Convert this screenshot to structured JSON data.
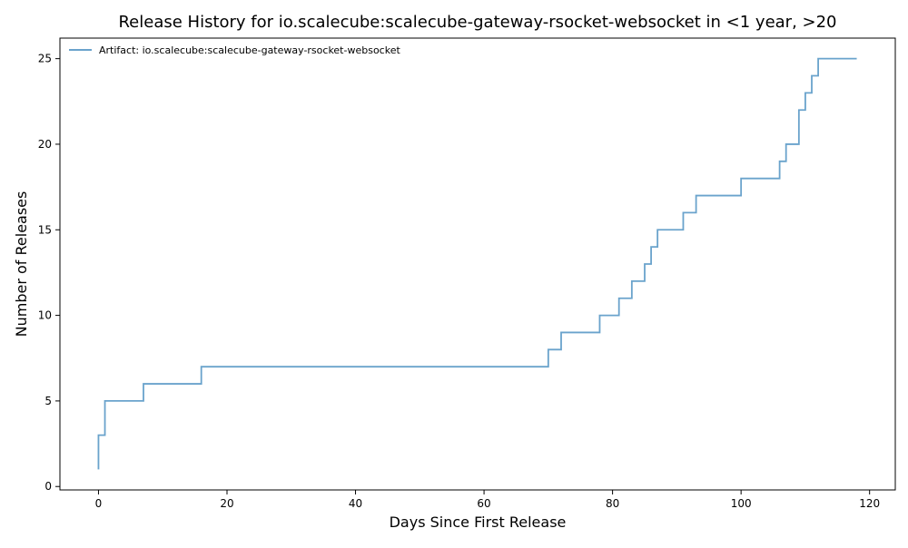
{
  "chart_data": {
    "type": "line",
    "title": "Release History for io.scalecube:scalecube-gateway-rsocket-websocket in <1 year, >20",
    "xlabel": "Days Since First Release",
    "ylabel": "Number of Releases",
    "xlim": [
      -6,
      124
    ],
    "ylim": [
      -0.2,
      26.2
    ],
    "xticks": [
      0,
      20,
      40,
      60,
      80,
      100,
      120
    ],
    "yticks": [
      0,
      5,
      10,
      15,
      20,
      25
    ],
    "grid": false,
    "legend_position": "top-left",
    "series": [
      {
        "name": "Artifact: io.scalecube:scalecube-gateway-rsocket-websocket",
        "color": "#6aa3cc",
        "step": "post",
        "points": [
          [
            0,
            1
          ],
          [
            0,
            3
          ],
          [
            1,
            5
          ],
          [
            7,
            6
          ],
          [
            16,
            7
          ],
          [
            70,
            8
          ],
          [
            72,
            9
          ],
          [
            78,
            10
          ],
          [
            81,
            11
          ],
          [
            83,
            12
          ],
          [
            85,
            13
          ],
          [
            86,
            14
          ],
          [
            87,
            15
          ],
          [
            91,
            16
          ],
          [
            93,
            17
          ],
          [
            100,
            18
          ],
          [
            106,
            19
          ],
          [
            107,
            20
          ],
          [
            109,
            22
          ],
          [
            110,
            23
          ],
          [
            111,
            24
          ],
          [
            112,
            25
          ],
          [
            118,
            25
          ]
        ]
      }
    ]
  }
}
